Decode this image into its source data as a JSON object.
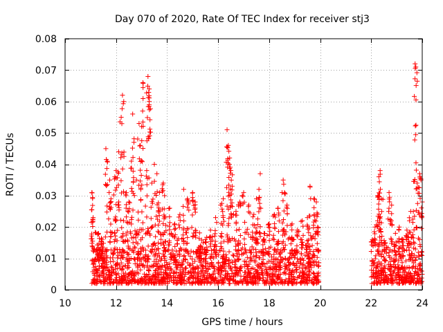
{
  "chart_data": {
    "type": "scatter",
    "title": "Day 070 of 2020, Rate Of TEC Index for receiver stj3",
    "xlabel": "GPS time / hours",
    "ylabel": "ROTI / TECUs",
    "xlim": [
      10,
      24
    ],
    "ylim": [
      0,
      0.08
    ],
    "xticks": [
      10,
      12,
      14,
      16,
      18,
      20,
      22,
      24
    ],
    "xtick_labels": [
      "10",
      "12",
      "14",
      "16",
      "18",
      "20",
      "22",
      "24"
    ],
    "yticks": [
      0,
      0.01,
      0.02,
      0.03,
      0.04,
      0.05,
      0.06,
      0.07,
      0.08
    ],
    "ytick_labels": [
      "0",
      "0.01",
      "0.02",
      "0.03",
      "0.04",
      "0.05",
      "0.06",
      "0.07",
      "0.08"
    ],
    "grid": true,
    "marker": "+",
    "color": "#ff0000",
    "series": [
      {
        "name": "ROTI",
        "segments": [
          {
            "x_start": 11.05,
            "x_end": 19.95,
            "typical_range": [
              0.002,
              0.013
            ]
          },
          {
            "x_start": 22.0,
            "x_end": 24.0,
            "typical_range": [
              0.002,
              0.012
            ]
          }
        ],
        "peaks": [
          [
            11.05,
            0.031
          ],
          [
            11.1,
            0.023
          ],
          [
            11.3,
            0.018
          ],
          [
            11.45,
            0.016
          ],
          [
            11.6,
            0.045
          ],
          [
            11.65,
            0.041
          ],
          [
            11.75,
            0.035
          ],
          [
            11.8,
            0.029
          ],
          [
            11.95,
            0.036
          ],
          [
            12.0,
            0.038
          ],
          [
            12.1,
            0.044
          ],
          [
            12.2,
            0.055
          ],
          [
            12.25,
            0.062
          ],
          [
            12.3,
            0.06
          ],
          [
            12.4,
            0.031
          ],
          [
            12.5,
            0.028
          ],
          [
            12.6,
            0.041
          ],
          [
            12.65,
            0.056
          ],
          [
            12.7,
            0.047
          ],
          [
            12.8,
            0.035
          ],
          [
            12.9,
            0.053
          ],
          [
            12.95,
            0.046
          ],
          [
            13.0,
            0.052
          ],
          [
            13.05,
            0.066
          ],
          [
            13.2,
            0.038
          ],
          [
            13.25,
            0.068
          ],
          [
            13.3,
            0.064
          ],
          [
            13.3,
            0.06
          ],
          [
            13.4,
            0.034
          ],
          [
            13.5,
            0.04
          ],
          [
            13.6,
            0.037
          ],
          [
            13.7,
            0.031
          ],
          [
            13.85,
            0.034
          ],
          [
            13.9,
            0.03
          ],
          [
            14.1,
            0.026
          ],
          [
            14.3,
            0.021
          ],
          [
            14.5,
            0.024
          ],
          [
            14.65,
            0.032
          ],
          [
            14.8,
            0.029
          ],
          [
            15.0,
            0.031
          ],
          [
            15.1,
            0.028
          ],
          [
            15.3,
            0.014
          ],
          [
            15.5,
            0.016
          ],
          [
            15.7,
            0.019
          ],
          [
            15.9,
            0.023
          ],
          [
            16.1,
            0.027
          ],
          [
            16.2,
            0.029
          ],
          [
            16.35,
            0.051
          ],
          [
            16.4,
            0.046
          ],
          [
            16.45,
            0.042
          ],
          [
            16.5,
            0.038
          ],
          [
            16.55,
            0.033
          ],
          [
            16.7,
            0.025
          ],
          [
            16.85,
            0.028
          ],
          [
            17.0,
            0.031
          ],
          [
            17.2,
            0.027
          ],
          [
            17.4,
            0.024
          ],
          [
            17.5,
            0.029
          ],
          [
            17.6,
            0.032
          ],
          [
            17.65,
            0.037
          ],
          [
            17.8,
            0.018
          ],
          [
            18.0,
            0.021
          ],
          [
            18.2,
            0.024
          ],
          [
            18.35,
            0.026
          ],
          [
            18.55,
            0.035
          ],
          [
            18.6,
            0.031
          ],
          [
            18.7,
            0.027
          ],
          [
            18.9,
            0.021
          ],
          [
            19.1,
            0.019
          ],
          [
            19.3,
            0.022
          ],
          [
            19.5,
            0.023
          ],
          [
            19.6,
            0.033
          ],
          [
            19.75,
            0.029
          ],
          [
            19.85,
            0.028
          ],
          [
            19.9,
            0.02
          ],
          [
            22.05,
            0.016
          ],
          [
            22.15,
            0.02
          ],
          [
            22.25,
            0.022
          ],
          [
            22.3,
            0.036
          ],
          [
            22.35,
            0.038
          ],
          [
            22.4,
            0.029
          ],
          [
            22.55,
            0.015
          ],
          [
            22.7,
            0.031
          ],
          [
            22.8,
            0.027
          ],
          [
            22.95,
            0.018
          ],
          [
            23.1,
            0.02
          ],
          [
            23.25,
            0.016
          ],
          [
            23.4,
            0.019
          ],
          [
            23.5,
            0.022
          ],
          [
            23.55,
            0.025
          ],
          [
            23.65,
            0.025
          ],
          [
            23.72,
            0.072
          ],
          [
            23.75,
            0.071
          ],
          [
            23.8,
            0.034
          ],
          [
            23.9,
            0.037
          ],
          [
            23.95,
            0.035
          ],
          [
            24.0,
            0.028
          ]
        ]
      }
    ]
  }
}
